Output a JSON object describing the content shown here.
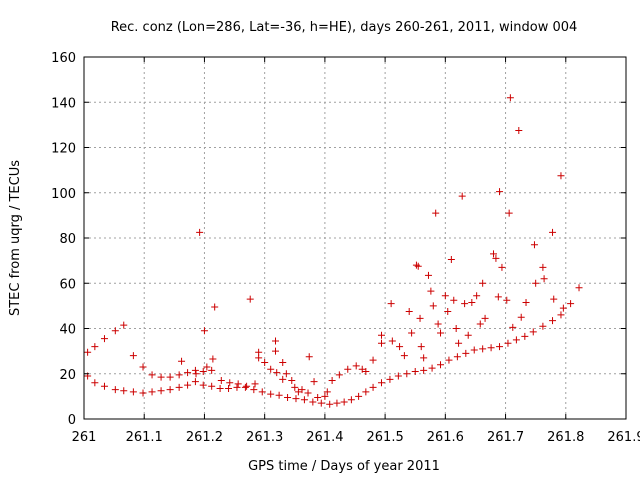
{
  "chart_data": {
    "type": "scatter",
    "title": "Rec. conz (Lon=286, Lat=-36, h=HE), days 260-261, 2011, window 004",
    "xlabel": "GPS time / Days of year 2011",
    "ylabel": "STEC from uqrg / TECUs",
    "xlim": [
      261,
      261.9
    ],
    "ylim": [
      0,
      160
    ],
    "xticks": [
      261,
      261.1,
      261.2,
      261.3,
      261.4,
      261.5,
      261.6,
      261.7,
      261.8,
      261.9
    ],
    "xtick_labels": [
      "261",
      "261.1",
      "261.2",
      "261.3",
      "261.4",
      "261.5",
      "261.6",
      "261.7",
      "261.8",
      "261.9"
    ],
    "yticks": [
      0,
      20,
      40,
      60,
      80,
      100,
      120,
      140,
      160
    ],
    "ytick_labels": [
      "0",
      "20",
      "40",
      "60",
      "80",
      "100",
      "120",
      "140",
      "160"
    ],
    "grid": true,
    "marker": "plus",
    "color": "#cc0000",
    "points": [
      [
        261.006,
        29.5
      ],
      [
        261.018,
        32
      ],
      [
        261.034,
        35.5
      ],
      [
        261.052,
        39
      ],
      [
        261.066,
        41.5
      ],
      [
        261.006,
        19
      ],
      [
        261.018,
        16
      ],
      [
        261.034,
        14.5
      ],
      [
        261.052,
        13
      ],
      [
        261.066,
        12.5
      ],
      [
        261.082,
        12
      ],
      [
        261.098,
        11.5
      ],
      [
        261.113,
        12
      ],
      [
        261.128,
        12.5
      ],
      [
        261.143,
        13
      ],
      [
        261.158,
        14
      ],
      [
        261.172,
        15
      ],
      [
        261.185,
        16.5
      ],
      [
        261.198,
        15
      ],
      [
        261.212,
        14.5
      ],
      [
        261.226,
        13.5
      ],
      [
        261.24,
        13.5
      ],
      [
        261.254,
        14
      ],
      [
        261.268,
        14
      ],
      [
        261.282,
        13
      ],
      [
        261.296,
        12
      ],
      [
        261.31,
        11
      ],
      [
        261.324,
        10.5
      ],
      [
        261.338,
        9.5
      ],
      [
        261.352,
        9
      ],
      [
        261.366,
        8.5
      ],
      [
        261.38,
        7.5
      ],
      [
        261.394,
        7
      ],
      [
        261.408,
        6.5
      ],
      [
        261.42,
        7
      ],
      [
        261.432,
        7.5
      ],
      [
        261.444,
        8.5
      ],
      [
        261.456,
        10
      ],
      [
        261.468,
        12
      ],
      [
        261.48,
        14
      ],
      [
        261.494,
        16
      ],
      [
        261.508,
        17.5
      ],
      [
        261.522,
        19
      ],
      [
        261.536,
        20
      ],
      [
        261.55,
        21
      ],
      [
        261.564,
        21.5
      ],
      [
        261.578,
        22.5
      ],
      [
        261.592,
        24
      ],
      [
        261.606,
        26
      ],
      [
        261.62,
        27.5
      ],
      [
        261.634,
        29
      ],
      [
        261.648,
        30.5
      ],
      [
        261.662,
        31
      ],
      [
        261.676,
        31.5
      ],
      [
        261.69,
        32
      ],
      [
        261.704,
        33.5
      ],
      [
        261.718,
        35
      ],
      [
        261.732,
        36.5
      ],
      [
        261.746,
        38.5
      ],
      [
        261.762,
        41
      ],
      [
        261.778,
        43.5
      ],
      [
        261.792,
        46
      ],
      [
        261.808,
        51
      ],
      [
        261.822,
        58
      ],
      [
        261.082,
        28
      ],
      [
        261.098,
        23
      ],
      [
        261.113,
        19.5
      ],
      [
        261.128,
        18.5
      ],
      [
        261.143,
        18.5
      ],
      [
        261.158,
        19.5
      ],
      [
        261.172,
        20.5
      ],
      [
        261.185,
        21.5
      ],
      [
        261.198,
        21
      ],
      [
        261.212,
        21.5
      ],
      [
        261.162,
        25.5
      ],
      [
        261.186,
        20
      ],
      [
        261.204,
        23
      ],
      [
        261.214,
        26.5
      ],
      [
        261.192,
        82.5
      ],
      [
        261.2,
        39
      ],
      [
        261.217,
        49.5
      ],
      [
        261.276,
        53
      ],
      [
        261.228,
        17
      ],
      [
        261.242,
        16
      ],
      [
        261.256,
        15.5
      ],
      [
        261.27,
        14.5
      ],
      [
        261.284,
        15.5
      ],
      [
        261.29,
        29.5
      ],
      [
        261.29,
        27
      ],
      [
        261.3,
        25
      ],
      [
        261.31,
        22
      ],
      [
        261.318,
        34.5
      ],
      [
        261.318,
        30
      ],
      [
        261.32,
        20.5
      ],
      [
        261.33,
        25
      ],
      [
        261.336,
        20
      ],
      [
        261.33,
        17.5
      ],
      [
        261.345,
        17
      ],
      [
        261.35,
        14
      ],
      [
        261.356,
        12
      ],
      [
        261.362,
        13
      ],
      [
        261.372,
        11.5
      ],
      [
        261.374,
        27.5
      ],
      [
        261.382,
        16.5
      ],
      [
        261.388,
        9.5
      ],
      [
        261.4,
        10
      ],
      [
        261.404,
        12
      ],
      [
        261.412,
        17
      ],
      [
        261.424,
        19.5
      ],
      [
        261.438,
        22
      ],
      [
        261.452,
        23.5
      ],
      [
        261.462,
        22
      ],
      [
        261.468,
        21
      ],
      [
        261.48,
        26
      ],
      [
        261.494,
        37
      ],
      [
        261.494,
        33.5
      ],
      [
        261.51,
        51
      ],
      [
        261.512,
        34.5
      ],
      [
        261.524,
        32
      ],
      [
        261.532,
        28
      ],
      [
        261.54,
        47.5
      ],
      [
        261.544,
        38
      ],
      [
        261.552,
        68
      ],
      [
        261.555,
        67.5
      ],
      [
        261.558,
        44.5
      ],
      [
        261.56,
        32
      ],
      [
        261.564,
        27
      ],
      [
        261.572,
        63.5
      ],
      [
        261.576,
        56.5
      ],
      [
        261.58,
        50
      ],
      [
        261.584,
        91
      ],
      [
        261.588,
        42
      ],
      [
        261.592,
        38
      ],
      [
        261.6,
        54.5
      ],
      [
        261.604,
        47.5
      ],
      [
        261.61,
        70.5
      ],
      [
        261.614,
        52.5
      ],
      [
        261.618,
        40
      ],
      [
        261.622,
        33.5
      ],
      [
        261.628,
        98.5
      ],
      [
        261.632,
        51
      ],
      [
        261.638,
        37
      ],
      [
        261.644,
        51.5
      ],
      [
        261.652,
        54.5
      ],
      [
        261.658,
        42
      ],
      [
        261.662,
        60
      ],
      [
        261.666,
        44.5
      ],
      [
        261.68,
        73
      ],
      [
        261.684,
        71
      ],
      [
        261.688,
        54
      ],
      [
        261.69,
        100.5
      ],
      [
        261.694,
        67
      ],
      [
        261.702,
        52.5
      ],
      [
        261.706,
        91
      ],
      [
        261.708,
        142
      ],
      [
        261.712,
        40.5
      ],
      [
        261.722,
        127.5
      ],
      [
        261.726,
        45
      ],
      [
        261.734,
        51.5
      ],
      [
        261.748,
        77
      ],
      [
        261.75,
        60
      ],
      [
        261.762,
        67
      ],
      [
        261.764,
        62
      ],
      [
        261.778,
        82.5
      ],
      [
        261.78,
        53
      ],
      [
        261.792,
        107.5
      ],
      [
        261.796,
        49
      ]
    ]
  }
}
